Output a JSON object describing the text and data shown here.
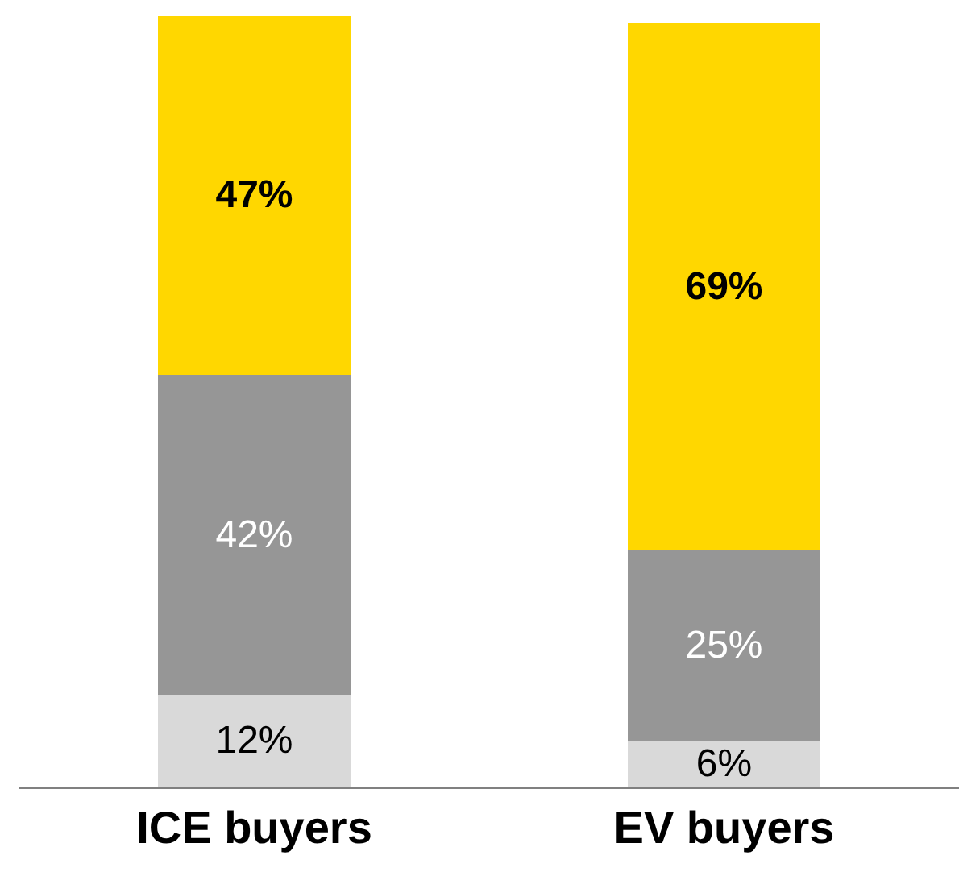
{
  "chart_data": {
    "type": "bar",
    "stacked": true,
    "categories": [
      "ICE buyers",
      "EV buyers"
    ],
    "series": [
      {
        "color": "#d9d9d9",
        "values": [
          12,
          6
        ],
        "value_labels": [
          "12%",
          "6%"
        ]
      },
      {
        "color": "#969696",
        "values": [
          42,
          25
        ],
        "value_labels": [
          "42%",
          "25%"
        ]
      },
      {
        "color": "#ffd700",
        "values": [
          47,
          69
        ],
        "value_labels": [
          "47%",
          "69%"
        ]
      }
    ],
    "ylim": [
      0,
      101
    ],
    "tick_labels": "x"
  }
}
